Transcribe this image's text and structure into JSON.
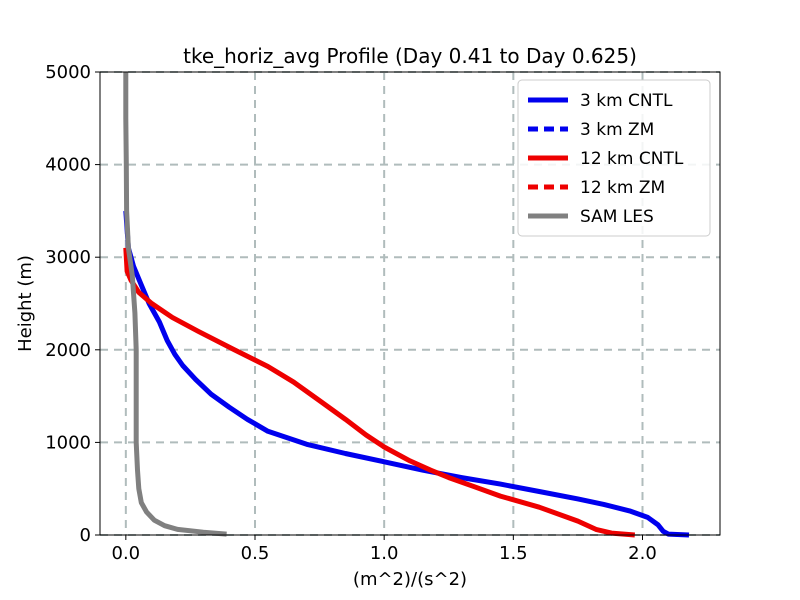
{
  "chart_data": {
    "type": "line",
    "title": "tke_horiz_avg Profile (Day 0.41 to Day 0.625)",
    "xlabel": "(m^2)/(s^2)",
    "ylabel": "Height (m)",
    "xlim": [
      -0.1,
      2.3
    ],
    "ylim": [
      0,
      5000
    ],
    "xticks": [
      0.0,
      0.5,
      1.0,
      1.5,
      2.0
    ],
    "xtick_labels": [
      "0.0",
      "0.5",
      "1.0",
      "1.5",
      "2.0"
    ],
    "yticks": [
      0,
      1000,
      2000,
      3000,
      4000,
      5000
    ],
    "ytick_labels": [
      "0",
      "1000",
      "2000",
      "3000",
      "4000",
      "5000"
    ],
    "grid": true,
    "legend_position": "top-right",
    "series": [
      {
        "name": "3 km CNTL",
        "color": "#0000ee",
        "style": "solid",
        "points": [
          [
            2.18,
            0
          ],
          [
            2.1,
            10
          ],
          [
            2.08,
            40
          ],
          [
            2.06,
            110
          ],
          [
            2.02,
            190
          ],
          [
            1.95,
            260
          ],
          [
            1.85,
            330
          ],
          [
            1.75,
            390
          ],
          [
            1.6,
            470
          ],
          [
            1.45,
            550
          ],
          [
            1.3,
            620
          ],
          [
            1.15,
            700
          ],
          [
            1.0,
            790
          ],
          [
            0.85,
            880
          ],
          [
            0.7,
            980
          ],
          [
            0.55,
            1120
          ],
          [
            0.47,
            1250
          ],
          [
            0.4,
            1380
          ],
          [
            0.33,
            1520
          ],
          [
            0.27,
            1680
          ],
          [
            0.22,
            1830
          ],
          [
            0.19,
            1950
          ],
          [
            0.16,
            2100
          ],
          [
            0.13,
            2300
          ],
          [
            0.09,
            2500
          ],
          [
            0.06,
            2700
          ],
          [
            0.03,
            2900
          ],
          [
            0.01,
            3100
          ],
          [
            0.005,
            3300
          ],
          [
            0.0,
            3500
          ]
        ]
      },
      {
        "name": "3 km ZM",
        "color": "#0000ee",
        "style": "dashed",
        "points": []
      },
      {
        "name": "12 km CNTL",
        "color": "#ee0000",
        "style": "solid",
        "points": [
          [
            1.97,
            0
          ],
          [
            1.88,
            20
          ],
          [
            1.82,
            60
          ],
          [
            1.75,
            150
          ],
          [
            1.6,
            300
          ],
          [
            1.45,
            420
          ],
          [
            1.35,
            520
          ],
          [
            1.25,
            620
          ],
          [
            1.18,
            700
          ],
          [
            1.1,
            800
          ],
          [
            1.0,
            950
          ],
          [
            0.93,
            1080
          ],
          [
            0.85,
            1250
          ],
          [
            0.75,
            1450
          ],
          [
            0.65,
            1650
          ],
          [
            0.55,
            1820
          ],
          [
            0.42,
            2000
          ],
          [
            0.28,
            2200
          ],
          [
            0.18,
            2350
          ],
          [
            0.1,
            2500
          ],
          [
            0.05,
            2620
          ],
          [
            0.02,
            2750
          ],
          [
            0.005,
            2850
          ],
          [
            0.0,
            3100
          ]
        ]
      },
      {
        "name": "12 km ZM",
        "color": "#ee0000",
        "style": "dashed",
        "points": []
      },
      {
        "name": "SAM LES",
        "color": "#808080",
        "style": "solid",
        "points": [
          [
            0.39,
            10
          ],
          [
            0.3,
            30
          ],
          [
            0.2,
            60
          ],
          [
            0.15,
            100
          ],
          [
            0.11,
            160
          ],
          [
            0.08,
            250
          ],
          [
            0.06,
            350
          ],
          [
            0.05,
            500
          ],
          [
            0.045,
            700
          ],
          [
            0.04,
            1000
          ],
          [
            0.04,
            1500
          ],
          [
            0.04,
            2000
          ],
          [
            0.035,
            2400
          ],
          [
            0.025,
            2800
          ],
          [
            0.01,
            3100
          ],
          [
            0.003,
            3500
          ],
          [
            0.002,
            4000
          ],
          [
            0.0,
            4500
          ],
          [
            0.0,
            5000
          ]
        ]
      }
    ]
  }
}
